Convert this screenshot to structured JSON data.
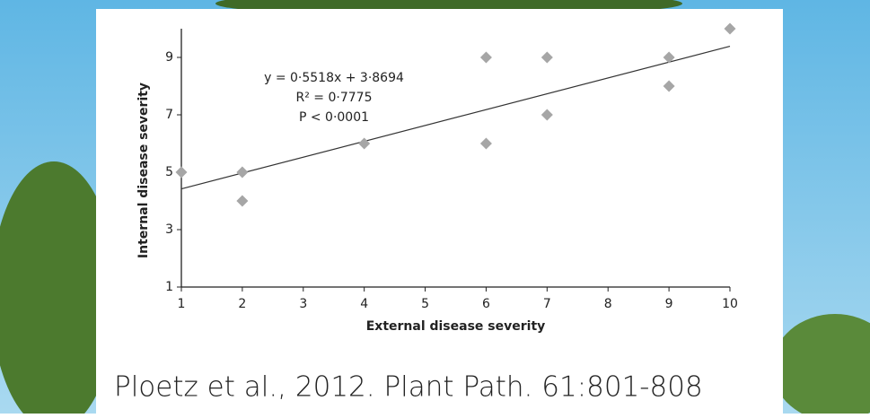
{
  "chart_data": {
    "type": "scatter",
    "x_label": "External disease severity",
    "y_label": "Internal disease severity",
    "x": [
      1,
      2,
      2,
      4,
      6,
      6,
      7,
      7,
      9,
      9,
      10
    ],
    "values": [
      5,
      5,
      4,
      6,
      9,
      6,
      9,
      7,
      9,
      8,
      10
    ],
    "color": "#a6a6a6",
    "xlim": [
      1,
      10
    ],
    "xticks": [
      1,
      2,
      3,
      4,
      5,
      6,
      7,
      8,
      9,
      10
    ],
    "ylim": [
      1,
      10
    ],
    "yticks": [
      1,
      3,
      5,
      7,
      9
    ],
    "trendline": {
      "slope": 0.5518,
      "intercept": 3.8694,
      "color": "#333333"
    },
    "annotations": [
      "y = 0·5518x + 3·8694",
      "R² = 0·7775",
      "P < 0·0001"
    ]
  },
  "citation": "Ploetz et al., 2012. Plant Path. 61:801-808"
}
